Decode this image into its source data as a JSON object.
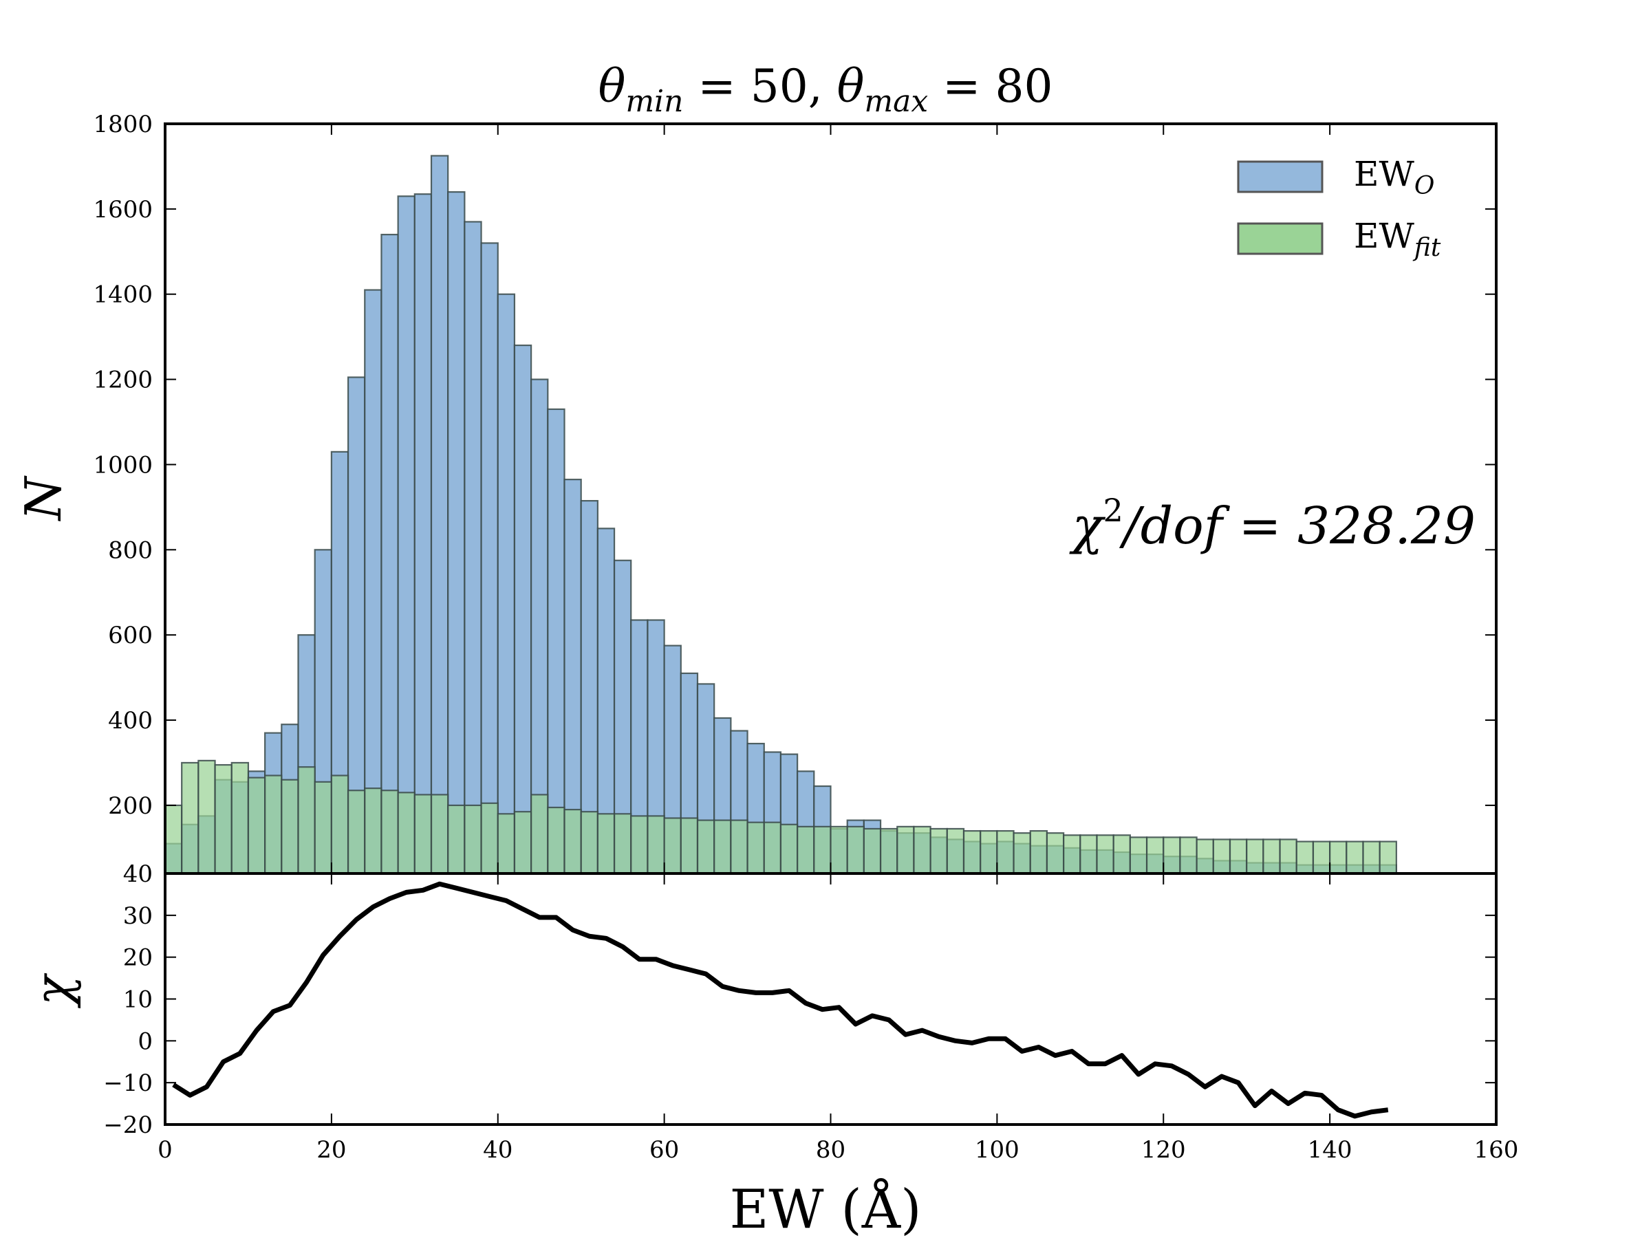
{
  "chart_data": [
    {
      "type": "bar",
      "title": "θ_min = 50, θ_max = 80",
      "title_parts": {
        "theta": "θ",
        "sub_min": "min",
        "mid": " = 50, ",
        "sub_max": "max",
        "end": " = 80"
      },
      "xlabel": "EW (Å)",
      "ylabel": "N",
      "xlim": [
        0,
        160
      ],
      "ylim": [
        40,
        1800
      ],
      "yticks": [
        "40",
        "200",
        "400",
        "600",
        "800",
        "1000",
        "1200",
        "1400",
        "1600",
        "1800"
      ],
      "annotation": "χ²/dof = 328.29",
      "annotation_parts": {
        "chi": "χ",
        "sup": "2",
        "rest": "/dof = 328.29"
      },
      "bin_width": 2,
      "bin_start": 0,
      "legend": {
        "placement": "top-right"
      },
      "series": [
        {
          "name": "EW_O",
          "legend_main": "EW",
          "legend_sub": "O",
          "color": "#94b8dc",
          "values": [
            110,
            155,
            175,
            260,
            255,
            280,
            370,
            390,
            600,
            800,
            1030,
            1205,
            1410,
            1540,
            1630,
            1635,
            1725,
            1640,
            1570,
            1520,
            1400,
            1280,
            1200,
            1130,
            965,
            915,
            850,
            775,
            635,
            635,
            575,
            510,
            485,
            405,
            375,
            345,
            325,
            320,
            280,
            245,
            145,
            165,
            165,
            140,
            135,
            135,
            125,
            120,
            115,
            110,
            115,
            110,
            105,
            105,
            100,
            95,
            95,
            90,
            85,
            85,
            80,
            80,
            75,
            70,
            70,
            65,
            65,
            65,
            60,
            60,
            60,
            60,
            60,
            60
          ]
        },
        {
          "name": "EW_fit",
          "legend_main": "EW",
          "legend_sub": "fit",
          "color": "#9ad396",
          "values": [
            200,
            300,
            305,
            295,
            300,
            265,
            270,
            260,
            290,
            255,
            270,
            235,
            240,
            235,
            230,
            225,
            225,
            200,
            200,
            205,
            180,
            185,
            225,
            195,
            190,
            185,
            180,
            180,
            175,
            175,
            170,
            170,
            165,
            165,
            165,
            160,
            160,
            155,
            150,
            150,
            150,
            150,
            145,
            145,
            150,
            150,
            145,
            145,
            140,
            140,
            140,
            135,
            140,
            135,
            130,
            130,
            130,
            130,
            125,
            125,
            125,
            125,
            120,
            120,
            120,
            120,
            120,
            120,
            115,
            115,
            115,
            115,
            115,
            115
          ]
        }
      ]
    },
    {
      "type": "line",
      "ylabel": "χ",
      "xlabel": "EW (Å)",
      "xlim": [
        0,
        160
      ],
      "ylim": [
        -20,
        40
      ],
      "xticks": [
        "0",
        "20",
        "40",
        "60",
        "80",
        "100",
        "120",
        "140",
        "160"
      ],
      "yticks": [
        "−20",
        "−10",
        "0",
        "10",
        "20",
        "30"
      ],
      "x_start": 1,
      "x_step": 2,
      "values": [
        -10.5,
        -13,
        -11,
        -5,
        -3,
        2.5,
        7,
        8.5,
        14,
        20.5,
        25,
        29,
        32,
        34,
        35.5,
        36,
        37.5,
        36.5,
        35.5,
        34.5,
        33.5,
        31.5,
        29.5,
        29.5,
        26.5,
        25,
        24.5,
        22.5,
        19.5,
        19.5,
        18,
        17,
        16,
        13,
        12,
        11.5,
        11.5,
        12,
        9,
        7.5,
        8,
        4,
        6,
        5,
        1.5,
        2.5,
        1,
        0,
        -0.5,
        0.5,
        0.5,
        -2.5,
        -1.5,
        -3.5,
        -2.5,
        -5.5,
        -5.5,
        -3.5,
        -8,
        -5.5,
        -6,
        -8,
        -11,
        -8.5,
        -10,
        -15.5,
        -12,
        -15,
        -12.5,
        -13,
        -16.5,
        -18,
        -17,
        -16.5
      ]
    }
  ]
}
